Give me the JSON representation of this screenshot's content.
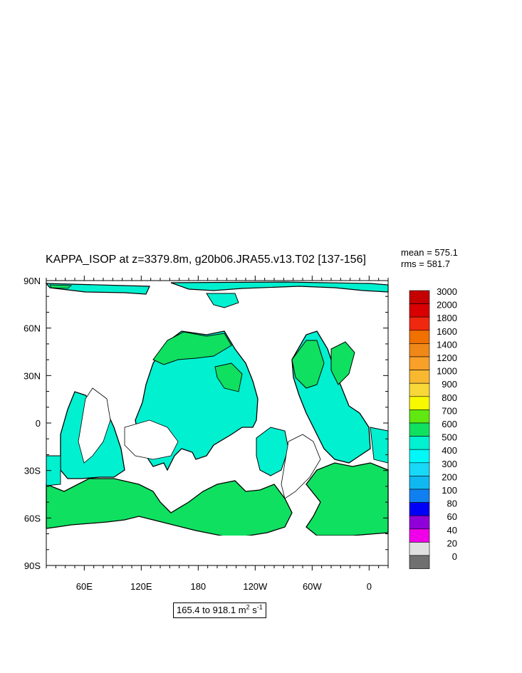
{
  "title": "KAPPA_ISOP at z=3379.8m, g20b06.JRA55.v13.T02 [137-156]",
  "stats": {
    "mean": "mean = 575.1",
    "rms": "rms = 581.7"
  },
  "lat_labels": [
    "90N",
    "60N",
    "30N",
    "0",
    "30S",
    "60S",
    "90S"
  ],
  "lon_labels": [
    "60E",
    "120E",
    "180",
    "120W",
    "60W",
    "0"
  ],
  "colorbar": {
    "labels": [
      "3000",
      "2000",
      "1800",
      "1600",
      "1400",
      "1200",
      "1000",
      "900",
      "800",
      "700",
      "600",
      "500",
      "400",
      "300",
      "200",
      "100",
      "80",
      "60",
      "40",
      "20",
      "0"
    ],
    "colors": [
      "#c40000",
      "#d80000",
      "#f02810",
      "#f07000",
      "#f08818",
      "#f8a028",
      "#f8b830",
      "#f8d838",
      "#f8f800",
      "#60e810",
      "#10e060",
      "#00f0d0",
      "#00f8f8",
      "#18d8f8",
      "#10b8f0",
      "#1080f0",
      "#0000f8",
      "#9000d8",
      "#f000e8",
      "#e0e0e0",
      "#707070"
    ]
  },
  "range": {
    "text": "165.4 to 918.1 m",
    "unit_power": "2",
    "unit_tail": " s",
    "unit_tail_power": "-1"
  },
  "colors": {
    "ocean_main": "#00f0d0",
    "ocean_green": "#10e060",
    "ocean_cyan": "#18d8f8",
    "land": "#ffffff"
  }
}
